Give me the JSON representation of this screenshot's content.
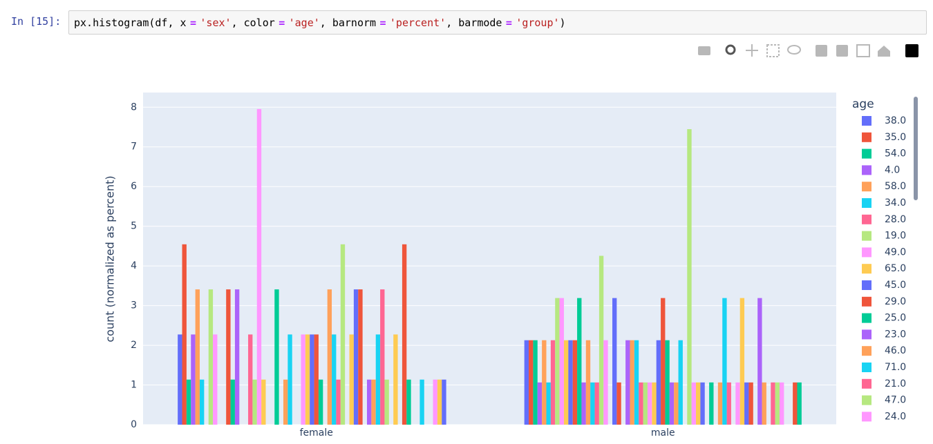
{
  "cell": {
    "prompt": "In [15]:",
    "code": [
      "px.histogram(df, x",
      "=",
      "'sex'",
      ", color",
      "=",
      "'age'",
      ", barnorm",
      "=",
      "'percent'",
      ", barmode",
      "=",
      "'group'",
      ")"
    ]
  },
  "chart_data": {
    "type": "bar",
    "ylabel": "count (normalized as percent)",
    "legend_title": "age",
    "categories": [
      "female",
      "male"
    ],
    "ylim": [
      0,
      8.37
    ],
    "yticks": [
      0,
      1,
      2,
      3,
      4,
      5,
      6,
      7,
      8
    ],
    "grid": true,
    "legend": "right",
    "series": [
      {
        "name": "38.0",
        "color": "#636efa",
        "values": [
          2.273,
          2.128
        ]
      },
      {
        "name": "35.0",
        "color": "#EF553B",
        "values": [
          4.545,
          2.128
        ]
      },
      {
        "name": "54.0",
        "color": "#00cc96",
        "values": [
          1.136,
          2.128
        ]
      },
      {
        "name": "4.0",
        "color": "#ab63fa",
        "values": [
          2.273,
          1.064
        ]
      },
      {
        "name": "58.0",
        "color": "#FFA15A",
        "values": [
          3.409,
          2.128
        ]
      },
      {
        "name": "34.0",
        "color": "#19d3f3",
        "values": [
          1.136,
          1.064
        ]
      },
      {
        "name": "28.0",
        "color": "#FF6692",
        "values": [
          0,
          2.128
        ]
      },
      {
        "name": "19.0",
        "color": "#B6E880",
        "values": [
          3.409,
          3.191
        ]
      },
      {
        "name": "49.0",
        "color": "#FF97FF",
        "values": [
          2.273,
          3.191
        ]
      },
      {
        "name": "65.0",
        "color": "#FECB52",
        "values": [
          0,
          2.128
        ]
      },
      {
        "name": "45.0",
        "color": "#636efa",
        "values": [
          0,
          2.128
        ]
      },
      {
        "name": "29.0",
        "color": "#EF553B",
        "values": [
          3.409,
          2.128
        ]
      },
      {
        "name": "25.0",
        "color": "#00cc96",
        "values": [
          1.136,
          3.191
        ]
      },
      {
        "name": "23.0",
        "color": "#ab63fa",
        "values": [
          3.409,
          1.064
        ]
      },
      {
        "name": "46.0",
        "color": "#FFA15A",
        "values": [
          0,
          2.128
        ]
      },
      {
        "name": "71.0",
        "color": "#19d3f3",
        "values": [
          0,
          1.064
        ]
      },
      {
        "name": "21.0",
        "color": "#FF6692",
        "values": [
          2.273,
          1.064
        ]
      },
      {
        "name": "47.0",
        "color": "#B6E880",
        "values": [
          1.136,
          4.255
        ]
      },
      {
        "name": "24.0",
        "color": "#FF97FF",
        "values": [
          7.955,
          2.128
        ]
      },
      {
        "color": "#FECB52",
        "values": [
          1.136,
          0
        ]
      },
      {
        "color": "#636efa",
        "values": [
          0,
          3.191
        ]
      },
      {
        "color": "#EF553B",
        "values": [
          0,
          1.064
        ]
      },
      {
        "color": "#00cc96",
        "values": [
          3.409,
          0
        ]
      },
      {
        "color": "#ab63fa",
        "values": [
          0,
          2.128
        ]
      },
      {
        "color": "#FFA15A",
        "values": [
          1.136,
          2.128
        ]
      },
      {
        "color": "#19d3f3",
        "values": [
          2.273,
          2.128
        ]
      },
      {
        "color": "#FF6692",
        "values": [
          0,
          1.064
        ]
      },
      {
        "color": "#B6E880",
        "values": [
          0,
          1.064
        ]
      },
      {
        "color": "#FF97FF",
        "values": [
          2.273,
          1.064
        ]
      },
      {
        "color": "#FECB52",
        "values": [
          2.273,
          1.064
        ]
      },
      {
        "color": "#636efa",
        "values": [
          2.273,
          2.128
        ]
      },
      {
        "color": "#EF553B",
        "values": [
          2.273,
          3.191
        ]
      },
      {
        "color": "#00cc96",
        "values": [
          1.136,
          2.128
        ]
      },
      {
        "color": "#ab63fa",
        "values": [
          0,
          1.064
        ]
      },
      {
        "color": "#FFA15A",
        "values": [
          3.409,
          1.064
        ]
      },
      {
        "color": "#19d3f3",
        "values": [
          2.273,
          2.128
        ]
      },
      {
        "color": "#FF6692",
        "values": [
          1.136,
          0
        ]
      },
      {
        "color": "#B6E880",
        "values": [
          4.545,
          7.447
        ]
      },
      {
        "color": "#FF97FF",
        "values": [
          0,
          1.064
        ]
      },
      {
        "color": "#FECB52",
        "values": [
          2.273,
          1.064
        ]
      },
      {
        "color": "#636efa",
        "values": [
          3.409,
          1.064
        ]
      },
      {
        "color": "#EF553B",
        "values": [
          3.409,
          0
        ]
      },
      {
        "color": "#00cc96",
        "values": [
          0,
          1.064
        ]
      },
      {
        "color": "#ab63fa",
        "values": [
          1.136,
          0
        ]
      },
      {
        "color": "#FFA15A",
        "values": [
          1.136,
          1.064
        ]
      },
      {
        "color": "#19d3f3",
        "values": [
          2.273,
          3.191
        ]
      },
      {
        "color": "#FF6692",
        "values": [
          3.409,
          1.064
        ]
      },
      {
        "color": "#B6E880",
        "values": [
          1.136,
          0
        ]
      },
      {
        "color": "#FF97FF",
        "values": [
          0,
          1.064
        ]
      },
      {
        "color": "#FECB52",
        "values": [
          2.273,
          3.191
        ]
      },
      {
        "color": "#636efa",
        "values": [
          0,
          1.064
        ]
      },
      {
        "color": "#EF553B",
        "values": [
          4.545,
          1.064
        ]
      },
      {
        "color": "#00cc96",
        "values": [
          1.136,
          0
        ]
      },
      {
        "color": "#ab63fa",
        "values": [
          0,
          3.191
        ]
      },
      {
        "color": "#FFA15A",
        "values": [
          0,
          1.064
        ]
      },
      {
        "color": "#19d3f3",
        "values": [
          1.136,
          0
        ]
      },
      {
        "color": "#FF6692",
        "values": [
          0,
          1.064
        ]
      },
      {
        "color": "#B6E880",
        "values": [
          0,
          1.064
        ]
      },
      {
        "color": "#FF97FF",
        "values": [
          1.136,
          1.064
        ]
      },
      {
        "color": "#FECB52",
        "values": [
          1.136,
          0
        ]
      },
      {
        "color": "#636efa",
        "values": [
          1.136,
          0
        ]
      },
      {
        "color": "#EF553B",
        "values": [
          0,
          1.064
        ]
      },
      {
        "color": "#00cc96",
        "values": [
          0,
          1.064
        ]
      }
    ]
  }
}
